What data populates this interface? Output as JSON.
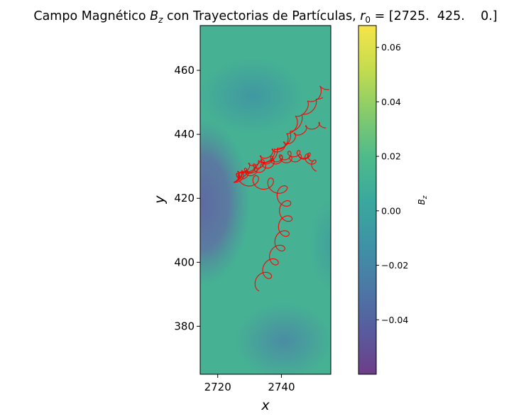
{
  "chart_data": {
    "type": "heatmap",
    "title": "Campo Magnético B_z con Trayectorias de Partículas, r_0 = [2725.  425.    0.]",
    "title_parts": {
      "prefix": "Campo Magnético ",
      "b": "B",
      "b_sub": "z",
      "middle": " con Trayectorias de Partículas, ",
      "r": "r",
      "r_sub": "0",
      "suffix": " = [2725.  425.    0.]"
    },
    "xlabel": "x",
    "ylabel": "y",
    "xlim": [
      2714.5,
      2755.5
    ],
    "ylim": [
      365,
      474
    ],
    "xticks": [
      2720,
      2740
    ],
    "yticks": [
      380,
      400,
      420,
      440,
      460
    ],
    "field": {
      "colormap": "viridis",
      "alpha": 0.8,
      "typical_range": [
        -0.045,
        0.03
      ],
      "regions": [
        {
          "label": "low lobe left",
          "x": 2716,
          "y": 422,
          "value": -0.043
        },
        {
          "label": "low area lower right",
          "x": 2742,
          "y": 375,
          "value": -0.012
        },
        {
          "label": "low area center top",
          "x": 2732,
          "y": 447,
          "value": 0.002
        },
        {
          "label": "high area",
          "x": 2750,
          "y": 405,
          "value": 0.022
        }
      ]
    },
    "colorbar": {
      "label": "B_z",
      "label_base": "B",
      "label_sub": "z",
      "range": [
        -0.06,
        0.068
      ],
      "ticks": [
        -0.04,
        -0.02,
        0.0,
        0.02,
        0.04,
        0.06
      ],
      "tick_labels": [
        "−0.04",
        "−0.02",
        "0.00",
        "0.02",
        "0.04",
        "0.06"
      ]
    },
    "trajectories": {
      "color": "#ff0000",
      "start": [
        2725,
        425
      ],
      "paths": [
        {
          "name": "",
          "loops": 7,
          "loop_radius": 0.9,
          "points": [
            [
              2725,
              425
            ],
            [
              2728,
              427
            ],
            [
              2731,
              429
            ],
            [
              2735,
              431
            ],
            [
              2738,
              433.5
            ],
            [
              2740,
              435.5
            ],
            [
              2742,
              438
            ],
            [
              2743.5,
              441
            ],
            [
              2745,
              444
            ],
            [
              2747,
              447
            ],
            [
              2749,
              449
            ],
            [
              2751,
              451
            ],
            [
              2752.5,
              453.5
            ],
            [
              2755,
              454
            ]
          ]
        },
        {
          "name": "",
          "loops": 6,
          "loop_radius": 0.8,
          "points": [
            [
              2725,
              425
            ],
            [
              2729,
              427
            ],
            [
              2733,
              429
            ],
            [
              2737,
              432
            ],
            [
              2740,
              435
            ],
            [
              2743,
              439
            ],
            [
              2745.5,
              443
            ],
            [
              2748,
              446
            ],
            [
              2751,
              449
            ],
            [
              2753,
              451.5
            ]
          ]
        },
        {
          "name": "",
          "loops": 10,
          "loop_radius": 1.1,
          "points": [
            [
              2725,
              425
            ],
            [
              2729,
              426.5
            ],
            [
              2733,
              428
            ],
            [
              2737,
              430
            ],
            [
              2741,
              432
            ],
            [
              2744,
              433
            ],
            [
              2747,
              432.5
            ],
            [
              2750,
              430
            ],
            [
              2751,
              428.5
            ]
          ]
        },
        {
          "name": "",
          "loops": 9,
          "loop_radius": 1.0,
          "points": [
            [
              2725,
              425
            ],
            [
              2729,
              427.5
            ],
            [
              2733,
              429.5
            ],
            [
              2736,
              431
            ],
            [
              2739,
              431.5
            ],
            [
              2742,
              431
            ],
            [
              2745,
              431.5
            ],
            [
              2748,
              432.5
            ],
            [
              2750,
              431.5
            ]
          ]
        },
        {
          "name": "",
          "loops": 8,
          "loop_radius": 0.9,
          "points": [
            [
              2725,
              425
            ],
            [
              2728,
              428
            ],
            [
              2732,
              430.5
            ],
            [
              2736,
              433
            ],
            [
              2740,
              435
            ],
            [
              2743,
              437.5
            ],
            [
              2746,
              440
            ],
            [
              2749,
              441.5
            ],
            [
              2752,
              442
            ],
            [
              2754,
              442
            ]
          ]
        },
        {
          "name": "",
          "loops": 10,
          "loop_radius": 1.9,
          "points": [
            [
              2725,
              425
            ],
            [
              2729,
              424
            ],
            [
              2733,
              423
            ],
            [
              2737,
              422.5
            ],
            [
              2740,
              421
            ],
            [
              2741,
              417
            ],
            [
              2741.5,
              412
            ],
            [
              2740.5,
              407
            ],
            [
              2739,
              402
            ],
            [
              2737,
              398
            ],
            [
              2735,
              394
            ],
            [
              2733,
              391
            ]
          ]
        }
      ]
    }
  }
}
